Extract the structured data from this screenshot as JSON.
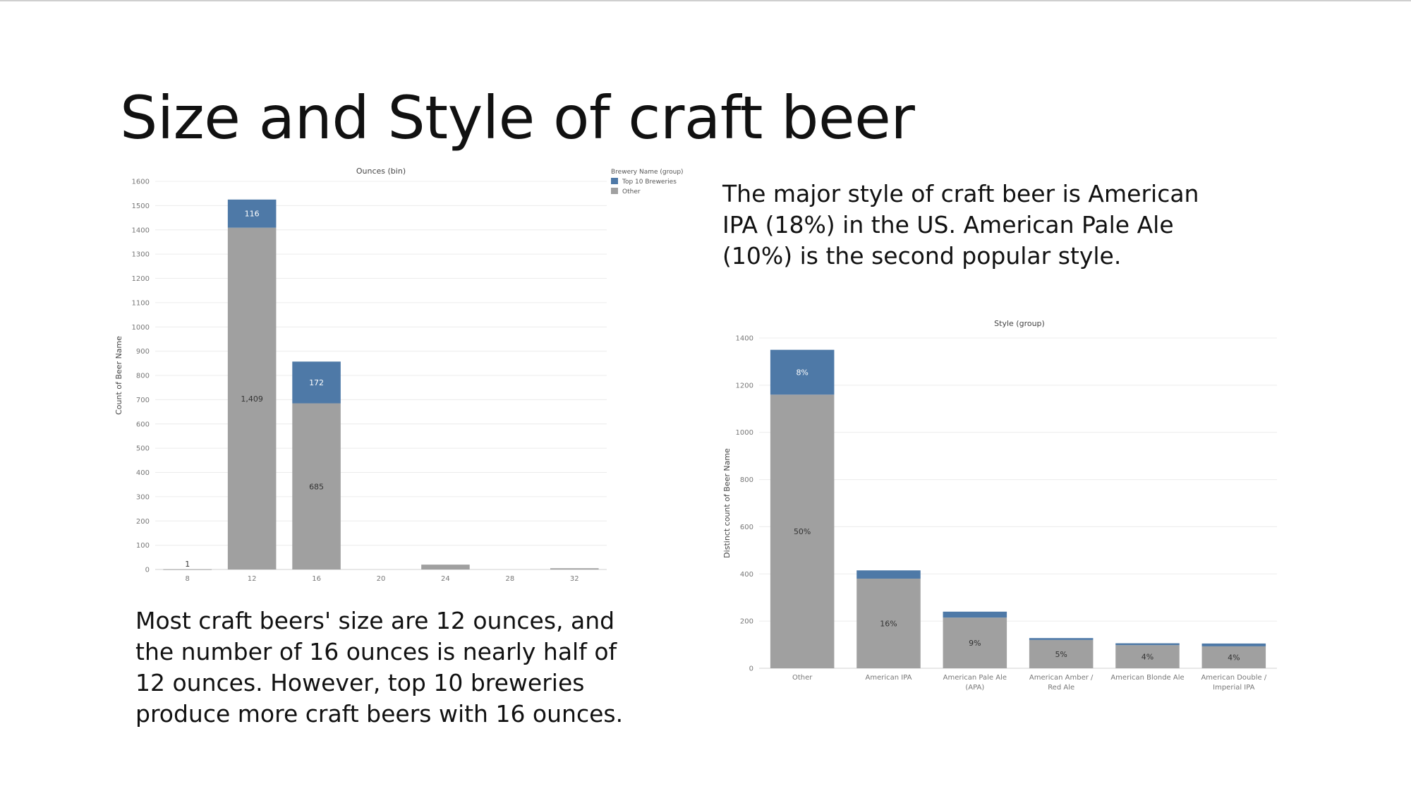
{
  "slide": {
    "title": "Size and Style of craft beer",
    "caption_size": "Most craft beers' size are 12 ounces, and the number of 16 ounces is nearly half of 12 ounces. However, top 10 breweries produce more craft beers with 16 ounces.",
    "caption_style": "The major style of craft beer is American IPA (18%) in the US. American Pale Ale (10%) is the second popular style."
  },
  "colors": {
    "top10": "#4e79a7",
    "other": "#a0a0a0"
  },
  "chart_data": [
    {
      "type": "bar",
      "stacked": true,
      "title": "Ounces (bin)",
      "xlabel": "",
      "ylabel": "Count of Beer Name",
      "categories": [
        "8",
        "12",
        "16",
        "20",
        "24",
        "28",
        "32"
      ],
      "series": [
        {
          "name": "Other",
          "values": [
            1,
            1409,
            685,
            0,
            20,
            0,
            5
          ],
          "labels": [
            "1",
            "1,409",
            "685",
            "",
            "",
            "",
            ""
          ]
        },
        {
          "name": "Top 10 Breweries",
          "values": [
            0,
            116,
            172,
            0,
            0,
            0,
            0
          ],
          "labels": [
            "",
            "116",
            "172",
            "",
            "",
            "",
            ""
          ]
        }
      ],
      "ylim": [
        0,
        1600
      ],
      "yticks": [
        "0",
        "100",
        "200",
        "300",
        "400",
        "500",
        "600",
        "700",
        "800",
        "900",
        "1000",
        "1100",
        "1200",
        "1300",
        "1400",
        "1500",
        "1600"
      ],
      "grid": true,
      "legend": {
        "title": "Brewery Name (group)",
        "position": "top-right",
        "entries": [
          "Top 10 Breweries",
          "Other"
        ]
      }
    },
    {
      "type": "bar",
      "stacked": true,
      "title": "Style (group)",
      "xlabel": "",
      "ylabel": "Distinct count of Beer Name",
      "categories": [
        [
          "Other"
        ],
        [
          "American IPA"
        ],
        [
          "American Pale Ale",
          "(APA)"
        ],
        [
          "American Amber /",
          "Red Ale"
        ],
        [
          "American Blonde Ale"
        ],
        [
          "American Double /",
          "Imperial IPA"
        ]
      ],
      "series": [
        {
          "name": "Other",
          "values": [
            1160,
            380,
            215,
            120,
            98,
            93
          ],
          "labels": [
            "50%",
            "16%",
            "9%",
            "5%",
            "4%",
            "4%"
          ]
        },
        {
          "name": "Top 10 Breweries",
          "values": [
            190,
            35,
            25,
            8,
            8,
            12
          ],
          "labels": [
            "8%",
            "",
            "",
            "",
            "",
            ""
          ]
        }
      ],
      "ylim": [
        0,
        1400
      ],
      "yticks": [
        "0",
        "200",
        "400",
        "600",
        "800",
        "1000",
        "1200",
        "1400"
      ],
      "grid": true
    }
  ]
}
